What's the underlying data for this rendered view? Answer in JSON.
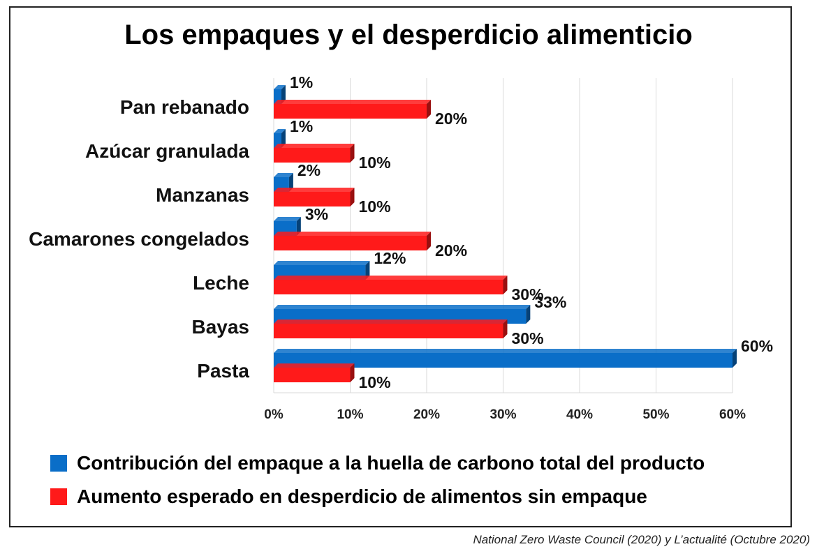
{
  "chart_data": {
    "type": "bar",
    "orientation": "horizontal",
    "title": "Los empaques y el desperdicio alimenticio",
    "categories": [
      "Pan rebanado",
      "Azúcar granulada",
      "Manzanas",
      "Camarones congelados",
      "Leche",
      "Bayas",
      "Pasta"
    ],
    "series": [
      {
        "name": "Contribución del empaque a la huella de carbono total del producto",
        "color": "#0a6ec8",
        "values": [
          1,
          1,
          2,
          3,
          12,
          33,
          60
        ],
        "labels": [
          "1%",
          "1%",
          "2%",
          "3%",
          "12%",
          "33%",
          "60%"
        ]
      },
      {
        "name": "Aumento esperado en desperdicio de alimentos sin empaque",
        "color": "#ff1a1a",
        "values": [
          20,
          10,
          10,
          20,
          30,
          30,
          10
        ],
        "labels": [
          "20%",
          "10%",
          "10%",
          "20%",
          "30%",
          "30%",
          "10%"
        ]
      }
    ],
    "xticks": [
      0,
      10,
      20,
      30,
      40,
      50,
      60
    ],
    "xtick_labels": [
      "0%",
      "10%",
      "20%",
      "30%",
      "40%",
      "50%",
      "60%"
    ],
    "xlim": [
      0,
      60
    ],
    "grid": true,
    "legend_position": "bottom"
  },
  "source": "National Zero Waste Council (2020) y L’actualité (Octubre 2020)"
}
